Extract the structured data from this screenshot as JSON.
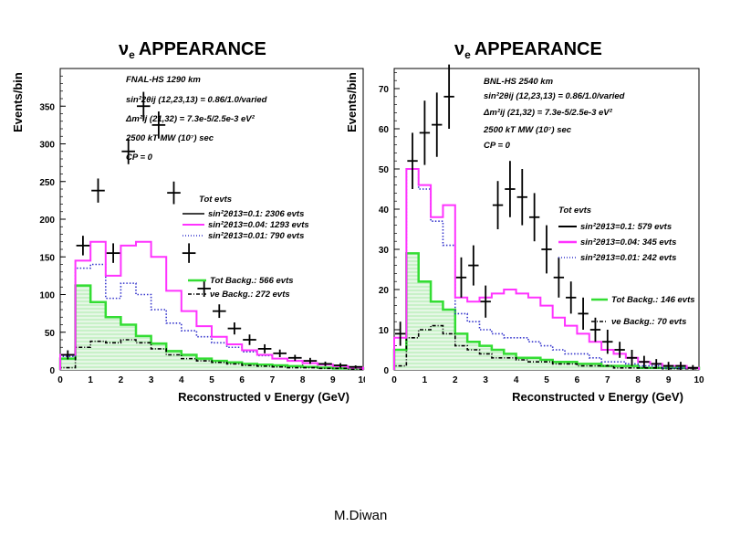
{
  "author": "M.Diwan",
  "chart_data": [
    {
      "type": "histogram",
      "title": "νe APPEARANCE",
      "xlabel": "Reconstructed ν Energy (GeV)",
      "ylabel": "Events/bin",
      "xlim": [
        0,
        10
      ],
      "ylim": [
        0,
        400
      ],
      "xticks": [
        0,
        1,
        2,
        3,
        4,
        5,
        6,
        7,
        8,
        9,
        10
      ],
      "yticks": [
        0,
        50,
        100,
        150,
        200,
        250,
        300,
        350
      ],
      "annotations": [
        "FNAL-HS  1290 km",
        "sin²2θij (12,23,13) = 0.86/1.0/varied",
        "Δm²ij (21,32) = 7.3e-5/2.5e-3 eV²",
        "2500 kT MW (10⁷) sec",
        "CP = 0"
      ],
      "legend_title": "Tot evts",
      "bin_edges": [
        0,
        0.5,
        1.0,
        1.5,
        2.0,
        2.5,
        3.0,
        3.5,
        4.0,
        4.5,
        5.0,
        5.5,
        6.0,
        6.5,
        7.0,
        7.5,
        8.0,
        8.5,
        9.0,
        9.5,
        10.0
      ],
      "series": [
        {
          "name": "sin²2θ13=0.1: 2306 evts",
          "style": "points",
          "color": "#000000",
          "values": [
            20,
            165,
            238,
            155,
            290,
            350,
            325,
            235,
            155,
            108,
            78,
            55,
            40,
            28,
            22,
            16,
            12,
            8,
            6,
            4
          ],
          "errors": [
            6,
            13,
            16,
            13,
            17,
            19,
            18,
            15,
            13,
            11,
            9,
            8,
            7,
            6,
            5,
            4,
            4,
            3,
            3,
            2
          ]
        },
        {
          "name": "sin²2θ13=0.04: 1293  evts",
          "style": "step",
          "color": "#ff33ff",
          "values": [
            20,
            145,
            170,
            125,
            165,
            170,
            150,
            105,
            78,
            58,
            44,
            34,
            26,
            20,
            15,
            12,
            9,
            7,
            5,
            3
          ]
        },
        {
          "name": "sin²2θ13=0.01: 790 evts",
          "style": "step-dotted",
          "color": "#3333cc",
          "values": [
            18,
            135,
            140,
            95,
            115,
            100,
            80,
            62,
            52,
            44,
            36,
            30,
            24,
            19,
            15,
            12,
            9,
            7,
            5,
            3
          ]
        },
        {
          "name": "Tot Backg.: 566 evts",
          "style": "step-filled",
          "color": "#33dd33",
          "values": [
            15,
            112,
            90,
            70,
            60,
            45,
            35,
            25,
            20,
            15,
            12,
            10,
            8,
            7,
            6,
            5,
            4,
            3,
            2,
            2
          ]
        },
        {
          "name": "νe Backg.: 272 evts",
          "style": "step-dashdot",
          "color": "#000000",
          "values": [
            3,
            30,
            38,
            36,
            40,
            36,
            28,
            20,
            15,
            12,
            10,
            8,
            6,
            5,
            4,
            3,
            3,
            2,
            2,
            1
          ]
        }
      ]
    },
    {
      "type": "histogram",
      "title": "νe APPEARANCE",
      "xlabel": "Reconstructed ν Energy (GeV)",
      "ylabel": "Events/bin",
      "xlim": [
        0,
        10
      ],
      "ylim": [
        0,
        75
      ],
      "xticks": [
        0,
        1,
        2,
        3,
        4,
        5,
        6,
        7,
        8,
        9,
        10
      ],
      "yticks": [
        0,
        10,
        20,
        30,
        40,
        50,
        60,
        70
      ],
      "annotations": [
        "BNL-HS 2540 km",
        "sin²2θij (12,23,13) = 0.86/1.0/varied",
        "Δm²ij (21,32) = 7.3e-5/2.5e-3 eV²",
        "2500 kT MW (10⁷) sec",
        "CP = 0"
      ],
      "legend_title": "Tot evts",
      "bin_edges": [
        0,
        0.4,
        0.8,
        1.2,
        1.6,
        2.0,
        2.4,
        2.8,
        3.2,
        3.6,
        4.0,
        4.4,
        4.8,
        5.2,
        5.6,
        6.0,
        6.4,
        6.8,
        7.2,
        7.6,
        8.0,
        8.4,
        8.8,
        9.2,
        9.6,
        10.0
      ],
      "series": [
        {
          "name": "sin²2θ13=0.1: 579 evts",
          "style": "points",
          "color": "#000000",
          "values": [
            9,
            52,
            59,
            61,
            68,
            23,
            26,
            17,
            41,
            45,
            43,
            38,
            30,
            23,
            18,
            14,
            10,
            7,
            5,
            3,
            2,
            1.5,
            1,
            1,
            0.5
          ],
          "errors": [
            3,
            7,
            8,
            8,
            8,
            5,
            5,
            4,
            6,
            7,
            7,
            6,
            6,
            5,
            4,
            4,
            3,
            3,
            2,
            2,
            1.5,
            1.2,
            1,
            1,
            0.7
          ]
        },
        {
          "name": "sin²2θ13=0.04: 345  evts",
          "style": "step",
          "color": "#ff33ff",
          "values": [
            8,
            50,
            46,
            38,
            41,
            18,
            17,
            18,
            19,
            20,
            19,
            18,
            16,
            13,
            11,
            9,
            7,
            5,
            4,
            3,
            2,
            1.5,
            1,
            1,
            0.5
          ],
          "errors": null
        },
        {
          "name": "sin²2θ13=0.01: 242 evts",
          "style": "step-dotted",
          "color": "#3333cc",
          "values": [
            8,
            50,
            45,
            37,
            31,
            14,
            12,
            10,
            9,
            8,
            8,
            7,
            6,
            5,
            4,
            4,
            3,
            2,
            2,
            1.5,
            1,
            1,
            0.5,
            0.5,
            0.5
          ],
          "errors": null
        },
        {
          "name": "Tot Backg.: 146 evts",
          "style": "step-filled",
          "color": "#33dd33",
          "values": [
            5,
            29,
            22,
            17,
            15,
            9,
            7,
            6,
            5,
            4,
            3,
            3,
            2.5,
            2,
            2,
            1.5,
            1.5,
            1,
            1,
            1,
            0.5,
            0.5,
            0.5,
            0.5,
            0.5
          ],
          "errors": null
        },
        {
          "name": "νe Backg.: 70 evts",
          "style": "step-dashdot",
          "color": "#000000",
          "values": [
            1,
            8,
            10,
            11,
            9,
            6,
            5,
            4,
            3,
            3,
            2.5,
            2,
            2,
            1.5,
            1.5,
            1,
            1,
            1,
            0.5,
            0.5,
            0.5,
            0.5,
            0.3,
            0.3,
            0.3
          ],
          "errors": null
        }
      ]
    }
  ]
}
